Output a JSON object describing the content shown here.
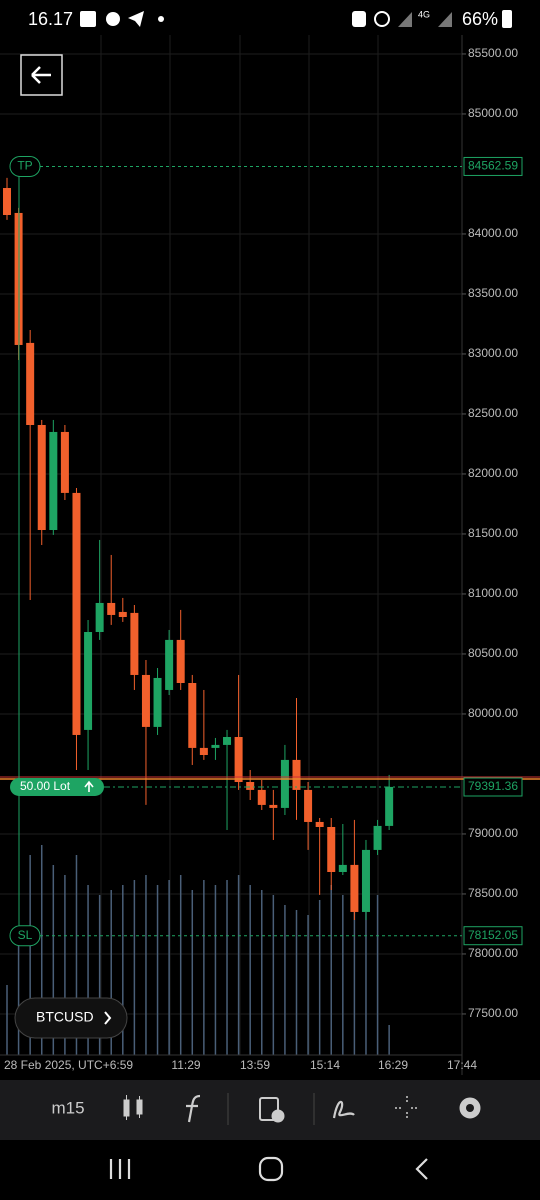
{
  "status_bar": {
    "time": "16.17",
    "battery": "66%"
  },
  "chart_data": {
    "type": "candlestick",
    "symbol": "BTCUSD",
    "timeframe": "m15",
    "open": [
      84383,
      84175,
      83092,
      82408,
      81533,
      82350,
      81842,
      79867,
      80683,
      80925,
      80850,
      80842,
      80325,
      79892,
      80200,
      80617,
      80258,
      79717,
      79717,
      79742,
      79808,
      79433,
      79367,
      79242,
      79217,
      79617,
      79367,
      79100,
      79058,
      78683,
      78742,
      78350,
      78867,
      79067
    ],
    "high": [
      84467,
      84217,
      83200,
      82450,
      82450,
      82408,
      81883,
      80783,
      81450,
      81325,
      80967,
      80908,
      80450,
      80383,
      80700,
      80867,
      80325,
      80200,
      79800,
      79867,
      80325,
      79533,
      79450,
      79367,
      79742,
      80133,
      79433,
      79133,
      79133,
      79083,
      79117,
      78950,
      79117,
      79492
    ],
    "low": [
      84117,
      82950,
      80950,
      81408,
      81492,
      81783,
      79533,
      79533,
      80617,
      80742,
      80767,
      80200,
      79242,
      79825,
      80158,
      80200,
      79575,
      79617,
      79617,
      79033,
      79367,
      79283,
      79200,
      78950,
      79158,
      79117,
      78867,
      78492,
      78533,
      78658,
      78283,
      78283,
      78825,
      79033
    ],
    "close": [
      84158,
      83075,
      82408,
      81533,
      82350,
      81842,
      79825,
      80683,
      80925,
      80825,
      80808,
      80325,
      79892,
      80300,
      80617,
      80258,
      79717,
      79658,
      79742,
      79808,
      79433,
      79367,
      79242,
      79217,
      79617,
      79367,
      79100,
      79058,
      78683,
      78742,
      78350,
      78867,
      79067,
      79392
    ],
    "volume": [
      70,
      120,
      200,
      210,
      190,
      180,
      200,
      170,
      160,
      165,
      170,
      175,
      180,
      170,
      175,
      180,
      165,
      175,
      170,
      175,
      180,
      170,
      165,
      160,
      150,
      145,
      140,
      155,
      170,
      160,
      150,
      165,
      160,
      30
    ],
    "colors": {
      "up": "#1ea463",
      "down": "#f2602c",
      "volume": "#4a5f78"
    },
    "ylim": [
      77158,
      85658
    ],
    "yticks": [
      {
        "value": 85500,
        "label": "85500.00"
      },
      {
        "value": 85000,
        "label": "85000.00"
      },
      {
        "value": 84000,
        "label": "84000.00"
      },
      {
        "value": 83500,
        "label": "83500.00"
      },
      {
        "value": 83000,
        "label": "83000.00"
      },
      {
        "value": 82500,
        "label": "82500.00"
      },
      {
        "value": 82000,
        "label": "82000.00"
      },
      {
        "value": 81500,
        "label": "81500.00"
      },
      {
        "value": 81000,
        "label": "81000.00"
      },
      {
        "value": 80500,
        "label": "80500.00"
      },
      {
        "value": 80000,
        "label": "80000.00"
      },
      {
        "value": 79000,
        "label": "79000.00"
      },
      {
        "value": 78500,
        "label": "78500.00"
      },
      {
        "value": 78000,
        "label": "78000.00"
      },
      {
        "value": 77500,
        "label": "77500.00"
      }
    ],
    "x_labels": [
      "28 Feb 2025, UTC+6:59",
      "11:29",
      "13:59",
      "15:14",
      "16:29",
      "17:44"
    ],
    "take_profit": {
      "label": "TP",
      "value": 84562.59
    },
    "stop_loss": {
      "label": "SL",
      "value": 78152.05
    },
    "current_price": {
      "value": 79391.36
    },
    "last_price": 79458,
    "position": {
      "label": "50.00 Lot"
    }
  }
}
